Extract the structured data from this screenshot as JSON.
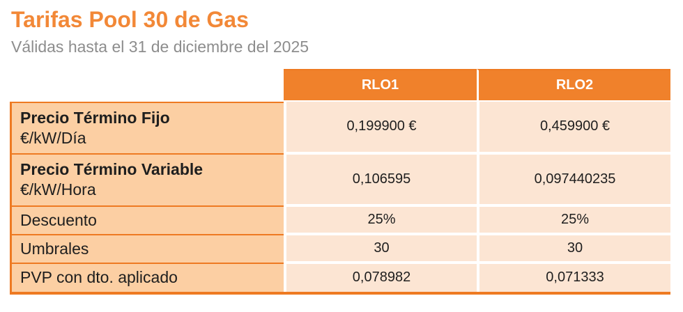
{
  "page": {
    "title": "Tarifas Pool 30 de Gas",
    "subtitle": "Válidas hasta el 31 de diciembre del 2025"
  },
  "colors": {
    "accent_orange": "#F0812B",
    "title_orange": "#F28837",
    "border_orange": "#EE7A22",
    "label_cell_bg": "#FCCFA3",
    "value_cell_bg": "#FCE5D3",
    "subtitle_gray": "#8D8D8D",
    "text_dark": "#1E1E1E"
  },
  "table": {
    "columns": [
      "RLO1",
      "RLO2"
    ],
    "rows": [
      {
        "label": "Precio Término Fijo",
        "sublabel": "€/kW/Día",
        "rlo1": "0,199900 €",
        "rlo2": "0,459900 €"
      },
      {
        "label": "Precio Término Variable",
        "sublabel": "€/kW/Hora",
        "rlo1": "0,106595",
        "rlo2": "0,097440235"
      },
      {
        "label": "Descuento",
        "rlo1": "25%",
        "rlo2": "25%"
      },
      {
        "label": "Umbrales",
        "rlo1": "30",
        "rlo2": "30"
      },
      {
        "label": "PVP con dto. aplicado",
        "rlo1": "0,078982",
        "rlo2": "0,071333"
      }
    ]
  }
}
